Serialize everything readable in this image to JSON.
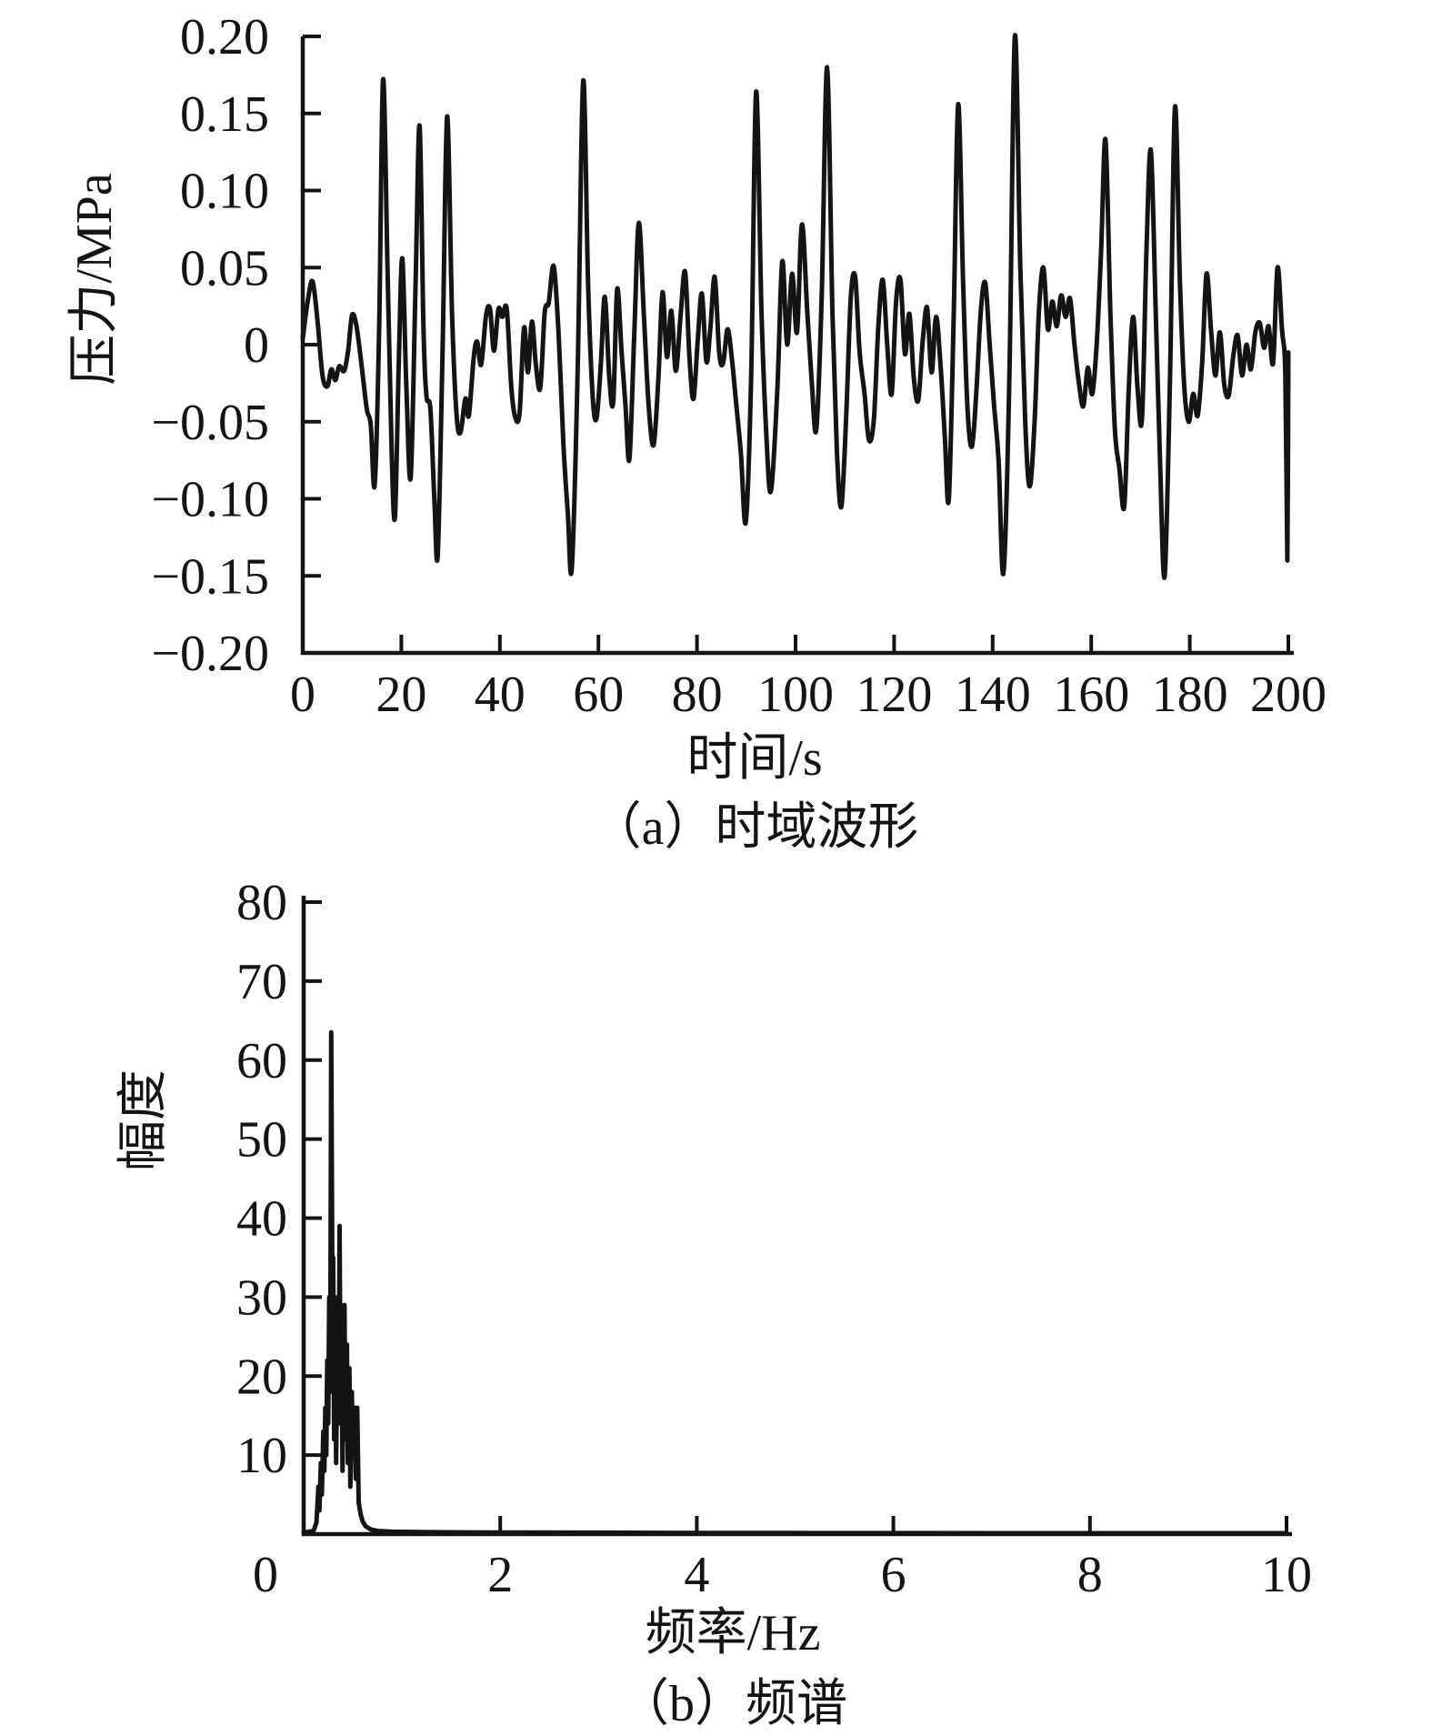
{
  "figure": {
    "background_color": "#ffffff",
    "line_color": "#141414",
    "panel_count": 2
  },
  "chart_data": [
    {
      "type": "line",
      "title": "（a）时域波形",
      "xlabel": "时间/s",
      "ylabel": "压力/MPa",
      "xlim": [
        0,
        200
      ],
      "ylim": [
        -0.2,
        0.2
      ],
      "grid": false,
      "legend": null,
      "xticks": [
        0,
        20,
        40,
        60,
        80,
        100,
        120,
        140,
        160,
        180,
        200
      ],
      "xtick_labels": [
        "0",
        "20",
        "40",
        "60",
        "80",
        "100",
        "120",
        "140",
        "160",
        "180",
        "200"
      ],
      "yticks": [
        0.2,
        0.15,
        0.1,
        0.05,
        0,
        -0.05,
        -0.1,
        -0.15,
        -0.2
      ],
      "ytick_labels": [
        "0.20",
        "0.15",
        "0.10",
        "0.05",
        "0",
        "−0.05",
        "−0.10",
        "−0.15",
        "−0.20"
      ],
      "points": [
        [
          0,
          0.004
        ],
        [
          1,
          0.028
        ],
        [
          2,
          0.041
        ],
        [
          3,
          0.015
        ],
        [
          4,
          -0.02
        ],
        [
          5,
          -0.027
        ],
        [
          5.8,
          -0.016
        ],
        [
          6.6,
          -0.023
        ],
        [
          7.4,
          -0.014
        ],
        [
          8.4,
          -0.017
        ],
        [
          9.2,
          -0.004
        ],
        [
          10,
          0.019
        ],
        [
          10.9,
          0.012
        ],
        [
          12,
          -0.015
        ],
        [
          13,
          -0.042
        ],
        [
          13.8,
          -0.052
        ],
        [
          14.6,
          -0.091
        ],
        [
          15.5,
          0.01
        ],
        [
          16.3,
          0.172
        ],
        [
          17.2,
          0.05
        ],
        [
          18,
          -0.065
        ],
        [
          18.7,
          -0.112
        ],
        [
          19.5,
          -0.01
        ],
        [
          20.2,
          0.056
        ],
        [
          21,
          -0.025
        ],
        [
          21.9,
          -0.086
        ],
        [
          22.9,
          0.04
        ],
        [
          23.7,
          0.142
        ],
        [
          24.5,
          0.01
        ],
        [
          25.1,
          -0.033
        ],
        [
          25.9,
          -0.042
        ],
        [
          26.7,
          -0.1
        ],
        [
          27.4,
          -0.136
        ],
        [
          28.4,
          0
        ],
        [
          29.3,
          0.148
        ],
        [
          30.3,
          0.02
        ],
        [
          31.2,
          -0.045
        ],
        [
          32,
          -0.057
        ],
        [
          33,
          -0.035
        ],
        [
          33.7,
          -0.046
        ],
        [
          34.7,
          -0.008
        ],
        [
          35.4,
          0.002
        ],
        [
          36.2,
          -0.013
        ],
        [
          37.2,
          0.019
        ],
        [
          38,
          0.023
        ],
        [
          38.8,
          -0.004
        ],
        [
          39.7,
          0.023
        ],
        [
          40.5,
          0.018
        ],
        [
          41.4,
          0.023
        ],
        [
          42.3,
          -0.027
        ],
        [
          43.1,
          -0.047
        ],
        [
          44,
          -0.044
        ],
        [
          44.9,
          0.011
        ],
        [
          45.7,
          -0.018
        ],
        [
          46.5,
          0.015
        ],
        [
          47.3,
          -0.013
        ],
        [
          48.2,
          -0.028
        ],
        [
          49.1,
          0.021
        ],
        [
          49.9,
          0.027
        ],
        [
          50.9,
          0.051
        ],
        [
          51.9,
          0.008
        ],
        [
          52.9,
          -0.065
        ],
        [
          53.8,
          -0.11
        ],
        [
          54.6,
          -0.145
        ],
        [
          55.8,
          -0.015
        ],
        [
          56.9,
          0.171
        ],
        [
          57.9,
          0.04
        ],
        [
          58.8,
          -0.032
        ],
        [
          59.6,
          -0.048
        ],
        [
          60.5,
          -0.012
        ],
        [
          61.3,
          0.031
        ],
        [
          62.2,
          -0.021
        ],
        [
          63,
          -0.037
        ],
        [
          63.8,
          0.036
        ],
        [
          64.7,
          -0.005
        ],
        [
          65.5,
          -0.04
        ],
        [
          66.3,
          -0.074
        ],
        [
          67.3,
          0.01
        ],
        [
          68.2,
          0.079
        ],
        [
          69.2,
          0.02
        ],
        [
          70.2,
          -0.04
        ],
        [
          71.2,
          -0.065
        ],
        [
          72.2,
          -0.02
        ],
        [
          73,
          0.034
        ],
        [
          73.9,
          -0.008
        ],
        [
          74.8,
          0.022
        ],
        [
          75.7,
          -0.017
        ],
        [
          76.7,
          0.02
        ],
        [
          77.6,
          0.047
        ],
        [
          78.5,
          -0.01
        ],
        [
          79.3,
          -0.035
        ],
        [
          80.2,
          0.005
        ],
        [
          81,
          0.033
        ],
        [
          81.9,
          -0.011
        ],
        [
          82.7,
          0.01
        ],
        [
          83.6,
          0.044
        ],
        [
          84.5,
          -0.005
        ],
        [
          85.3,
          -0.012
        ],
        [
          86.2,
          0.01
        ],
        [
          87.1,
          -0.01
        ],
        [
          88,
          -0.04
        ],
        [
          88.9,
          -0.07
        ],
        [
          89.9,
          -0.115
        ],
        [
          91,
          -0.02
        ],
        [
          92,
          0.164
        ],
        [
          93.1,
          0.02
        ],
        [
          94.1,
          -0.06
        ],
        [
          95,
          -0.095
        ],
        [
          96.3,
          -0.03
        ],
        [
          97.3,
          0.054
        ],
        [
          98.3,
          0
        ],
        [
          99.3,
          0.046
        ],
        [
          100.3,
          0.008
        ],
        [
          101.3,
          0.078
        ],
        [
          102.4,
          0.02
        ],
        [
          103.3,
          -0.025
        ],
        [
          104.2,
          -0.055
        ],
        [
          105.3,
          0.03
        ],
        [
          106.4,
          0.18
        ],
        [
          107.5,
          0.02
        ],
        [
          108.4,
          -0.07
        ],
        [
          109.3,
          -0.105
        ],
        [
          110.3,
          -0.045
        ],
        [
          111.2,
          0.03
        ],
        [
          112.1,
          0.044
        ],
        [
          113,
          -0.005
        ],
        [
          114,
          -0.032
        ],
        [
          114.9,
          -0.062
        ],
        [
          115.9,
          -0.048
        ],
        [
          116.8,
          0.012
        ],
        [
          117.7,
          0.042
        ],
        [
          118.6,
          0
        ],
        [
          119.5,
          -0.032
        ],
        [
          120.4,
          0.028
        ],
        [
          121.3,
          0.042
        ],
        [
          122.2,
          -0.006
        ],
        [
          123.1,
          0.02
        ],
        [
          124,
          -0.022
        ],
        [
          124.9,
          -0.036
        ],
        [
          125.8,
          0.002
        ],
        [
          126.7,
          0.024
        ],
        [
          127.6,
          -0.018
        ],
        [
          128.5,
          0.018
        ],
        [
          129.4,
          -0.012
        ],
        [
          130.3,
          -0.06
        ],
        [
          131.1,
          -0.1
        ],
        [
          132.1,
          0.02
        ],
        [
          133,
          0.156
        ],
        [
          134,
          0.04
        ],
        [
          134.9,
          -0.042
        ],
        [
          135.8,
          -0.066
        ],
        [
          136.7,
          -0.03
        ],
        [
          137.6,
          0.022
        ],
        [
          138.5,
          0.04
        ],
        [
          139.4,
          0
        ],
        [
          140.3,
          -0.04
        ],
        [
          141.2,
          -0.075
        ],
        [
          142.2,
          -0.148
        ],
        [
          143.4,
          -0.02
        ],
        [
          144.5,
          0.2
        ],
        [
          145.6,
          0.05
        ],
        [
          146.6,
          -0.05
        ],
        [
          147.5,
          -0.092
        ],
        [
          148.5,
          -0.05
        ],
        [
          149.4,
          0.022
        ],
        [
          150.3,
          0.05
        ],
        [
          151.2,
          0.01
        ],
        [
          152.1,
          0.028
        ],
        [
          153,
          0.012
        ],
        [
          153.9,
          0.032
        ],
        [
          154.8,
          0.018
        ],
        [
          155.7,
          0.03
        ],
        [
          156.6,
          0
        ],
        [
          157.5,
          -0.025
        ],
        [
          158.4,
          -0.04
        ],
        [
          159.3,
          -0.015
        ],
        [
          160.2,
          -0.032
        ],
        [
          161.1,
          0
        ],
        [
          162,
          0.06
        ],
        [
          162.9,
          0.133
        ],
        [
          163.9,
          0.02
        ],
        [
          164.8,
          -0.055
        ],
        [
          165.7,
          -0.08
        ],
        [
          166.7,
          -0.105
        ],
        [
          167.6,
          -0.03
        ],
        [
          168.5,
          0.018
        ],
        [
          169.4,
          -0.028
        ],
        [
          170.3,
          -0.048
        ],
        [
          171.2,
          0.06
        ],
        [
          172.1,
          0.126
        ],
        [
          173.1,
          0.02
        ],
        [
          174,
          -0.08
        ],
        [
          174.9,
          -0.15
        ],
        [
          176,
          -0.02
        ],
        [
          177,
          0.154
        ],
        [
          178,
          0.04
        ],
        [
          178.9,
          -0.028
        ],
        [
          179.8,
          -0.05
        ],
        [
          180.7,
          -0.032
        ],
        [
          181.6,
          -0.046
        ],
        [
          182.5,
          -0.012
        ],
        [
          183.4,
          0.046
        ],
        [
          184.3,
          0.01
        ],
        [
          185.2,
          -0.02
        ],
        [
          186.1,
          0.008
        ],
        [
          187,
          -0.026
        ],
        [
          187.9,
          -0.033
        ],
        [
          188.8,
          -0.008
        ],
        [
          189.7,
          0.006
        ],
        [
          190.6,
          -0.02
        ],
        [
          191.5,
          0
        ],
        [
          192.4,
          -0.016
        ],
        [
          193.3,
          0.008
        ],
        [
          194.2,
          0.014
        ],
        [
          195.1,
          -0.002
        ],
        [
          196,
          0.012
        ],
        [
          196.9,
          -0.012
        ],
        [
          197.8,
          0.05
        ],
        [
          198.7,
          0.01
        ],
        [
          199.4,
          -0.02
        ],
        [
          199.8,
          -0.14
        ],
        [
          200,
          -0.005
        ]
      ]
    },
    {
      "type": "line",
      "title": "（b）频谱",
      "xlabel": "频率/Hz",
      "ylabel": "幅度",
      "xlim": [
        0,
        10
      ],
      "ylim": [
        0,
        80
      ],
      "grid": false,
      "legend": null,
      "xticks": [
        0,
        2,
        4,
        6,
        8,
        10
      ],
      "xtick_labels": [
        "0",
        "2",
        "4",
        "6",
        "8",
        "10"
      ],
      "yticks": [
        80,
        70,
        60,
        50,
        40,
        30,
        20,
        10,
        0
      ],
      "ytick_labels": [
        "80",
        "70",
        "60",
        "50",
        "40",
        "30",
        "20",
        "10",
        ""
      ],
      "points": [
        [
          0,
          0.2
        ],
        [
          0.1,
          0.4
        ],
        [
          0.13,
          1.5
        ],
        [
          0.15,
          6
        ],
        [
          0.16,
          3
        ],
        [
          0.175,
          9
        ],
        [
          0.185,
          5
        ],
        [
          0.2,
          13
        ],
        [
          0.21,
          8
        ],
        [
          0.22,
          16
        ],
        [
          0.23,
          10
        ],
        [
          0.24,
          22
        ],
        [
          0.25,
          14
        ],
        [
          0.26,
          30
        ],
        [
          0.27,
          18
        ],
        [
          0.28,
          63.5
        ],
        [
          0.292,
          30
        ],
        [
          0.3,
          35
        ],
        [
          0.31,
          12
        ],
        [
          0.32,
          30
        ],
        [
          0.33,
          9
        ],
        [
          0.345,
          26
        ],
        [
          0.355,
          14
        ],
        [
          0.365,
          39
        ],
        [
          0.375,
          18
        ],
        [
          0.385,
          29
        ],
        [
          0.395,
          8
        ],
        [
          0.405,
          21
        ],
        [
          0.415,
          29
        ],
        [
          0.425,
          12
        ],
        [
          0.44,
          24
        ],
        [
          0.45,
          9
        ],
        [
          0.465,
          21
        ],
        [
          0.475,
          6
        ],
        [
          0.49,
          18
        ],
        [
          0.5,
          10
        ],
        [
          0.515,
          16
        ],
        [
          0.53,
          7
        ],
        [
          0.545,
          16
        ],
        [
          0.56,
          4
        ],
        [
          0.58,
          2.5
        ],
        [
          0.6,
          1.6
        ],
        [
          0.63,
          1
        ],
        [
          0.68,
          0.6
        ],
        [
          0.75,
          0.4
        ],
        [
          0.9,
          0.3
        ],
        [
          1.2,
          0.25
        ],
        [
          1.6,
          0.22
        ],
        [
          2,
          0.2
        ],
        [
          3,
          0.18
        ],
        [
          4,
          0.15
        ],
        [
          5,
          0.14
        ],
        [
          6,
          0.13
        ],
        [
          7,
          0.12
        ],
        [
          8,
          0.12
        ],
        [
          9,
          0.11
        ],
        [
          10,
          0.11
        ]
      ]
    }
  ]
}
